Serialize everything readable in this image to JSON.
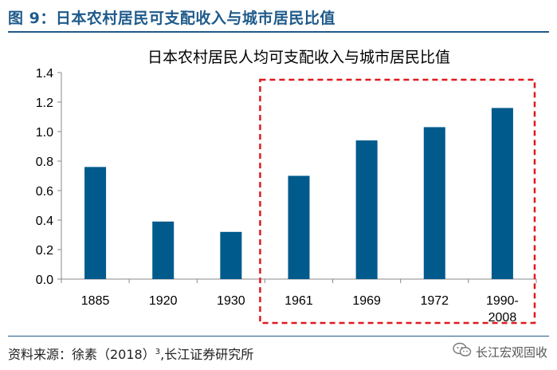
{
  "figure": {
    "label": "图 9：日本农村居民可支配收入与城市居民比值"
  },
  "source": {
    "prefix": "资料来源：徐素（2018）",
    "superscript": "3",
    "suffix": ",长江证券研究所"
  },
  "watermark": {
    "text": "长江宏观固收",
    "icon": "wechat-icon"
  },
  "chart_data": {
    "type": "bar",
    "title": "日本农村居民人均可支配收入与城市居民比值",
    "categories": [
      "1885",
      "1920",
      "1930",
      "1961",
      "1969",
      "1972",
      "1990-2008"
    ],
    "category_lines": [
      [
        "1885"
      ],
      [
        "1920"
      ],
      [
        "1930"
      ],
      [
        "1961"
      ],
      [
        "1969"
      ],
      [
        "1972"
      ],
      [
        "1990-",
        "2008"
      ]
    ],
    "values": [
      0.76,
      0.39,
      0.32,
      0.7,
      0.94,
      1.03,
      1.16
    ],
    "ylim": [
      0,
      1.4
    ],
    "yticks": [
      "0.0",
      "0.2",
      "0.4",
      "0.6",
      "0.8",
      "1.0",
      "1.2",
      "1.4"
    ],
    "xlabel": "",
    "ylabel": "",
    "grid": false,
    "highlight": {
      "from_category": "1961",
      "to_category": "1990-2008",
      "style": "dashed"
    },
    "colors": {
      "bar": "#005a8c",
      "highlight": "#e0191c",
      "axis": "#888888",
      "text": "#000000"
    }
  }
}
